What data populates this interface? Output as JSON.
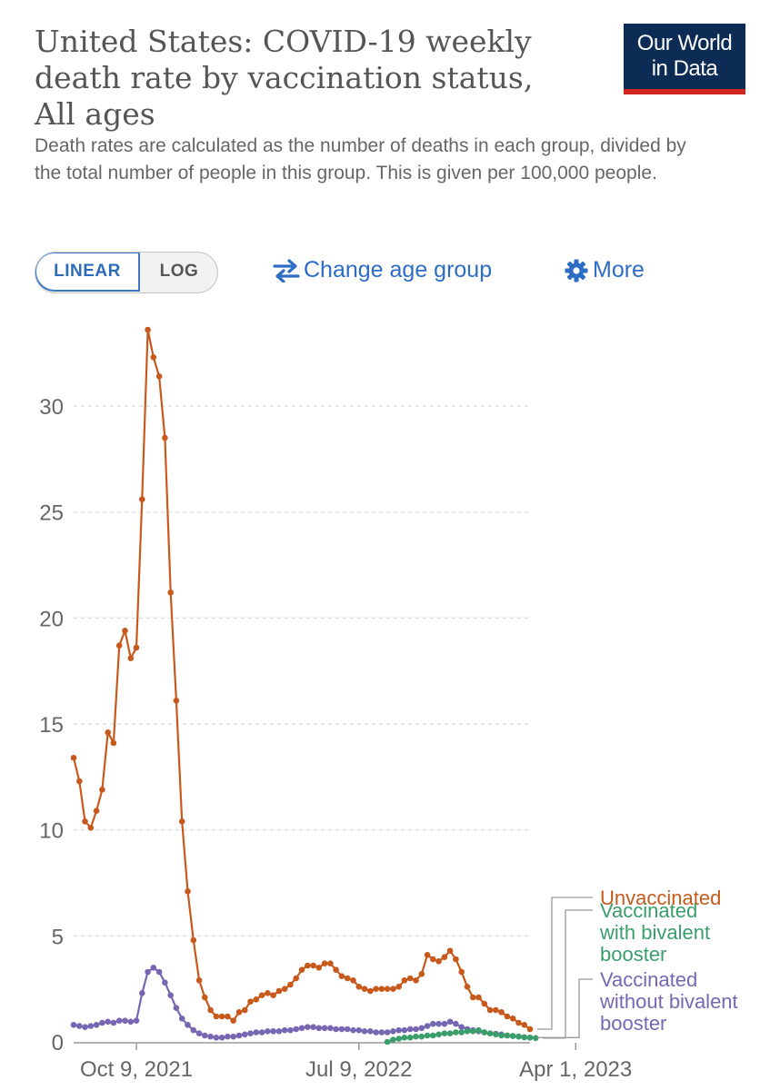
{
  "header": {
    "title": "United States: COVID-19 weekly death rate by vaccination status, All ages",
    "subtitle": "Death rates are calculated as the number of deaths in each group, divided by the total number of people in this group. This is given per 100,000 people.",
    "logo_line1": "Our World",
    "logo_line2": "in Data"
  },
  "controls": {
    "linear_label": "LINEAR",
    "log_label": "LOG",
    "change_age_label": "Change age group",
    "more_label": "More"
  },
  "colors": {
    "unvaccinated": "#c8591d",
    "bivalent": "#3a9e6b",
    "without_bivalent": "#7767b3",
    "grid": "#dddddd",
    "axis_text": "#666666",
    "accent": "#2d6dc5"
  },
  "chart_data": {
    "type": "line",
    "ylim": [
      0,
      35
    ],
    "y_ticks": [
      0,
      5,
      10,
      15,
      20,
      25,
      30
    ],
    "x_ticks": [
      "Oct 9, 2021",
      "Jul 9, 2022",
      "Apr 1, 2023"
    ],
    "x_tick_weeks": [
      11,
      50,
      88
    ],
    "series": [
      {
        "name": "Unvaccinated",
        "label_lines": [
          "Unvaccinated"
        ],
        "start_week": 0,
        "values": [
          13.4,
          12.3,
          10.4,
          10.1,
          10.9,
          11.9,
          14.6,
          14.1,
          18.7,
          19.4,
          18.1,
          18.6,
          25.6,
          33.6,
          32.3,
          31.4,
          28.5,
          21.2,
          16.1,
          10.4,
          7.1,
          4.8,
          2.9,
          2.1,
          1.5,
          1.2,
          1.2,
          1.2,
          1.0,
          1.4,
          1.5,
          1.9,
          2.0,
          2.2,
          2.3,
          2.2,
          2.4,
          2.5,
          2.7,
          3.0,
          3.4,
          3.6,
          3.6,
          3.5,
          3.7,
          3.7,
          3.4,
          3.1,
          3.0,
          2.9,
          2.6,
          2.5,
          2.4,
          2.5,
          2.5,
          2.5,
          2.5,
          2.6,
          2.9,
          3.0,
          2.9,
          3.2,
          4.1,
          3.9,
          3.8,
          4.0,
          4.3,
          3.9,
          3.3,
          2.6,
          2.1,
          2.1,
          1.8,
          1.5,
          1.5,
          1.4,
          1.2,
          1.1,
          0.9,
          0.8,
          0.6
        ],
        "label_y": 7.0
      },
      {
        "name": "Vaccinated with bivalent booster",
        "label_lines": [
          "Vaccinated",
          "with bivalent",
          "booster"
        ],
        "start_week": 55,
        "values": [
          0.0,
          0.1,
          0.15,
          0.2,
          0.2,
          0.25,
          0.25,
          0.3,
          0.3,
          0.35,
          0.4,
          0.4,
          0.45,
          0.45,
          0.5,
          0.5,
          0.55,
          0.45,
          0.4,
          0.35,
          0.3,
          0.3,
          0.28,
          0.25,
          0.22,
          0.2,
          0.18
        ],
        "label_y": 4.8
      },
      {
        "name": "Vaccinated without bivalent booster",
        "label_lines": [
          "Vaccinated",
          "without bivalent",
          "booster"
        ],
        "start_week": 0,
        "values": [
          0.8,
          0.75,
          0.7,
          0.75,
          0.8,
          0.9,
          0.95,
          0.9,
          1.0,
          1.0,
          0.95,
          1.0,
          2.3,
          3.3,
          3.5,
          3.3,
          2.8,
          2.2,
          1.6,
          1.1,
          0.8,
          0.55,
          0.4,
          0.3,
          0.25,
          0.2,
          0.2,
          0.25,
          0.25,
          0.3,
          0.35,
          0.4,
          0.45,
          0.45,
          0.5,
          0.5,
          0.5,
          0.55,
          0.55,
          0.6,
          0.65,
          0.7,
          0.7,
          0.65,
          0.65,
          0.65,
          0.6,
          0.6,
          0.6,
          0.55,
          0.55,
          0.5,
          0.5,
          0.45,
          0.45,
          0.45,
          0.5,
          0.55,
          0.55,
          0.6,
          0.6,
          0.65,
          0.75,
          0.85,
          0.85,
          0.85,
          0.95,
          0.85,
          0.7,
          0.6,
          0.55,
          0.5,
          0.45,
          0.4,
          0.38,
          0.35,
          0.3,
          0.28,
          0.25,
          0.22,
          0.2
        ],
        "label_y": 1.6
      }
    ]
  }
}
